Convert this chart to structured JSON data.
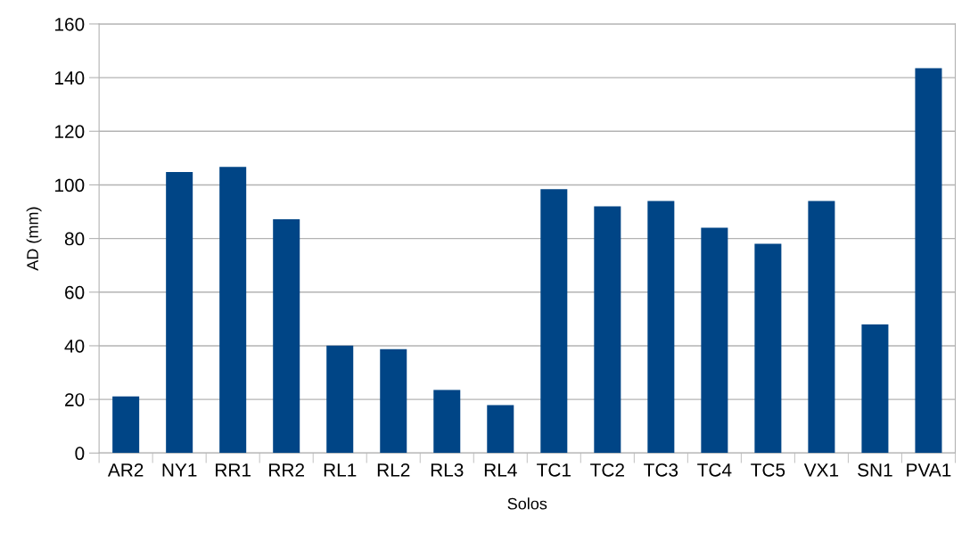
{
  "chart_data": {
    "type": "bar",
    "xlabel": "Solos",
    "ylabel": "AD (mm)",
    "categories": [
      "AR2",
      "NY1",
      "RR1",
      "RR2",
      "RL1",
      "RL2",
      "RL3",
      "RL4",
      "TC1",
      "TC2",
      "TC3",
      "TC4",
      "TC5",
      "VX1",
      "SN1",
      "PVA1"
    ],
    "values": [
      21.1,
      104.8,
      106.7,
      87.2,
      40.1,
      38.7,
      23.5,
      17.9,
      98.4,
      92.0,
      94.0,
      84.0,
      78.0,
      94.0,
      48.0,
      143.5
    ],
    "color": "#004586",
    "ylim": [
      0,
      160
    ],
    "yticks": [
      0,
      20,
      40,
      60,
      80,
      100,
      120,
      140,
      160
    ],
    "grid": "y",
    "legend": false
  }
}
